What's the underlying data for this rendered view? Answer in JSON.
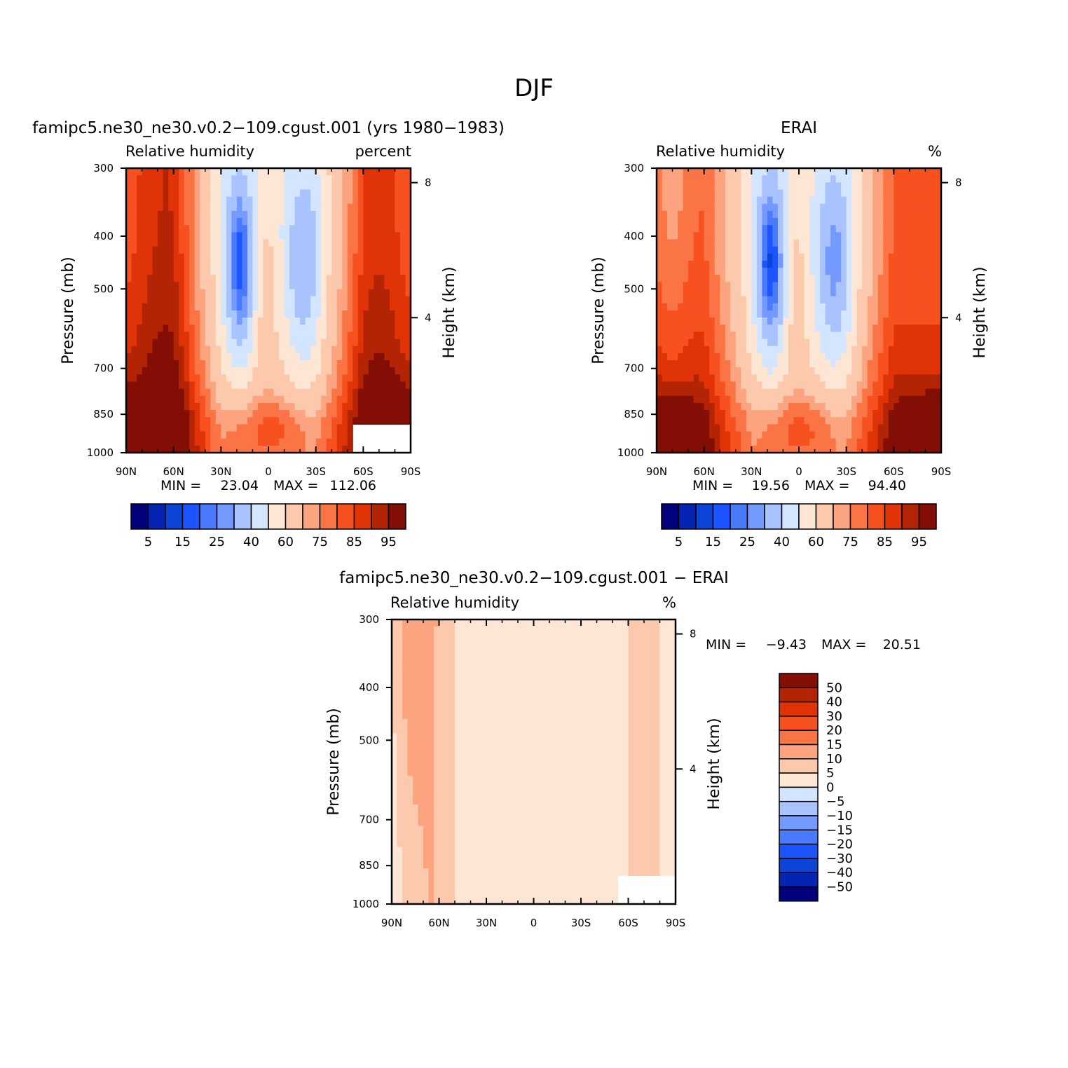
{
  "page_title": "DJF",
  "chart_data": [
    {
      "type": "heatmap",
      "panel_title": "famipc5.ne30_ne30.v0.2−109.cgust.001 (yrs 1980−1983)",
      "left_string": "Relative humidity",
      "right_string": "percent",
      "ylabel": "Pressure (mb)",
      "ylabel_right": "Height (km)",
      "x_ticks": [
        "90N",
        "60N",
        "30N",
        "0",
        "30S",
        "60S",
        "90S"
      ],
      "x_values": [
        90,
        60,
        30,
        0,
        -30,
        -60,
        -90
      ],
      "y_ticks": [
        "300",
        "400",
        "500",
        "700",
        "850",
        "1000"
      ],
      "y_values": [
        300,
        400,
        500,
        700,
        850,
        1000
      ],
      "y_right_ticks": [
        "8",
        "4"
      ],
      "y_right_values": [
        8,
        4
      ],
      "ylim": [
        1000,
        300
      ],
      "min_label": "MIN =",
      "min_value": "23.04",
      "max_label": "MAX =",
      "max_value": "112.06",
      "colorbar": {
        "labels": [
          "5",
          "15",
          "25",
          "40",
          "60",
          "75",
          "85",
          "95"
        ],
        "levels": [
          5,
          10,
          15,
          20,
          25,
          30,
          40,
          50,
          60,
          70,
          75,
          80,
          85,
          90,
          95
        ]
      }
    },
    {
      "type": "heatmap",
      "panel_title": "ERAI",
      "left_string": "Relative humidity",
      "right_string": "%",
      "ylabel": "Pressure (mb)",
      "ylabel_right": "Height (km)",
      "x_ticks": [
        "90N",
        "60N",
        "30N",
        "0",
        "30S",
        "60S",
        "90S"
      ],
      "x_values": [
        90,
        60,
        30,
        0,
        -30,
        -60,
        -90
      ],
      "y_ticks": [
        "300",
        "400",
        "500",
        "700",
        "850",
        "1000"
      ],
      "y_values": [
        300,
        400,
        500,
        700,
        850,
        1000
      ],
      "y_right_ticks": [
        "8",
        "4"
      ],
      "y_right_values": [
        8,
        4
      ],
      "ylim": [
        1000,
        300
      ],
      "min_label": "MIN =",
      "min_value": "19.56",
      "max_label": "MAX =",
      "max_value": "94.40",
      "colorbar": {
        "labels": [
          "5",
          "15",
          "25",
          "40",
          "60",
          "75",
          "85",
          "95"
        ],
        "levels": [
          5,
          10,
          15,
          20,
          25,
          30,
          40,
          50,
          60,
          70,
          75,
          80,
          85,
          90,
          95
        ]
      }
    },
    {
      "type": "heatmap",
      "panel_title": "famipc5.ne30_ne30.v0.2−109.cgust.001 − ERAI",
      "left_string": "Relative humidity",
      "right_string": "%",
      "ylabel": "Pressure (mb)",
      "ylabel_right": "Height (km)",
      "x_ticks": [
        "90N",
        "60N",
        "30N",
        "0",
        "30S",
        "60S",
        "90S"
      ],
      "x_values": [
        90,
        60,
        30,
        0,
        -30,
        -60,
        -90
      ],
      "y_ticks": [
        "300",
        "400",
        "500",
        "700",
        "850",
        "1000"
      ],
      "y_values": [
        300,
        400,
        500,
        700,
        850,
        1000
      ],
      "y_right_ticks": [
        "8",
        "4"
      ],
      "y_right_values": [
        8,
        4
      ],
      "ylim": [
        1000,
        300
      ],
      "min_label": "MIN =",
      "min_value": "−9.43",
      "max_label": "MAX =",
      "max_value": "20.51",
      "colorbar": {
        "labels": [
          "50",
          "40",
          "30",
          "20",
          "15",
          "10",
          "5",
          "0",
          "−5",
          "−10",
          "−15",
          "−20",
          "−30",
          "−40",
          "−50"
        ],
        "levels": [
          50,
          40,
          30,
          20,
          15,
          10,
          5,
          0,
          -5,
          -10,
          -15,
          -20,
          -30,
          -40,
          -50
        ]
      }
    }
  ],
  "colors": {
    "palette": [
      "#02007a",
      "#0624b4",
      "#0c44d8",
      "#1c55ff",
      "#4a7bff",
      "#7499ff",
      "#a9c3ff",
      "#d4e6ff",
      "#fee6d5",
      "#fdc9ad",
      "#fca37f",
      "#fa7445",
      "#f85120",
      "#e03408",
      "#b32405",
      "#820e05"
    ]
  }
}
